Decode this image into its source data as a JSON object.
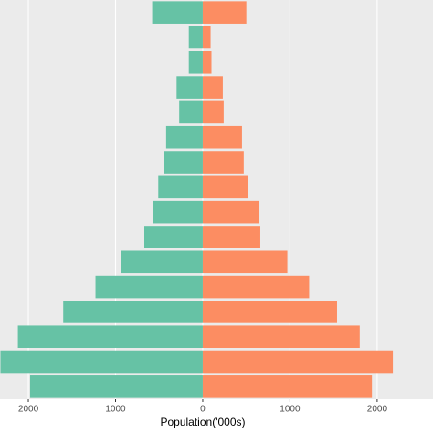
{
  "chart_data": {
    "type": "bar",
    "orientation": "horizontal",
    "stacked": false,
    "x_label": "Population('000s)",
    "series": [
      {
        "color": "#66c2a5",
        "values": [
          -580,
          -160,
          -160,
          -300,
          -270,
          -420,
          -440,
          -510,
          -570,
          -670,
          -940,
          -1230,
          -1600,
          -2120,
          -2320,
          -1980
        ]
      },
      {
        "color": "#fc8d62",
        "values": [
          500,
          90,
          100,
          230,
          240,
          450,
          470,
          520,
          650,
          660,
          970,
          1220,
          1540,
          1800,
          2180,
          1940
        ]
      }
    ],
    "xlim": [
      -2325,
      2640
    ],
    "xticks": [
      {
        "value": -2000,
        "label": "2000"
      },
      {
        "value": -1000,
        "label": "1000"
      },
      0,
      1000,
      2000
    ],
    "grid": true
  }
}
